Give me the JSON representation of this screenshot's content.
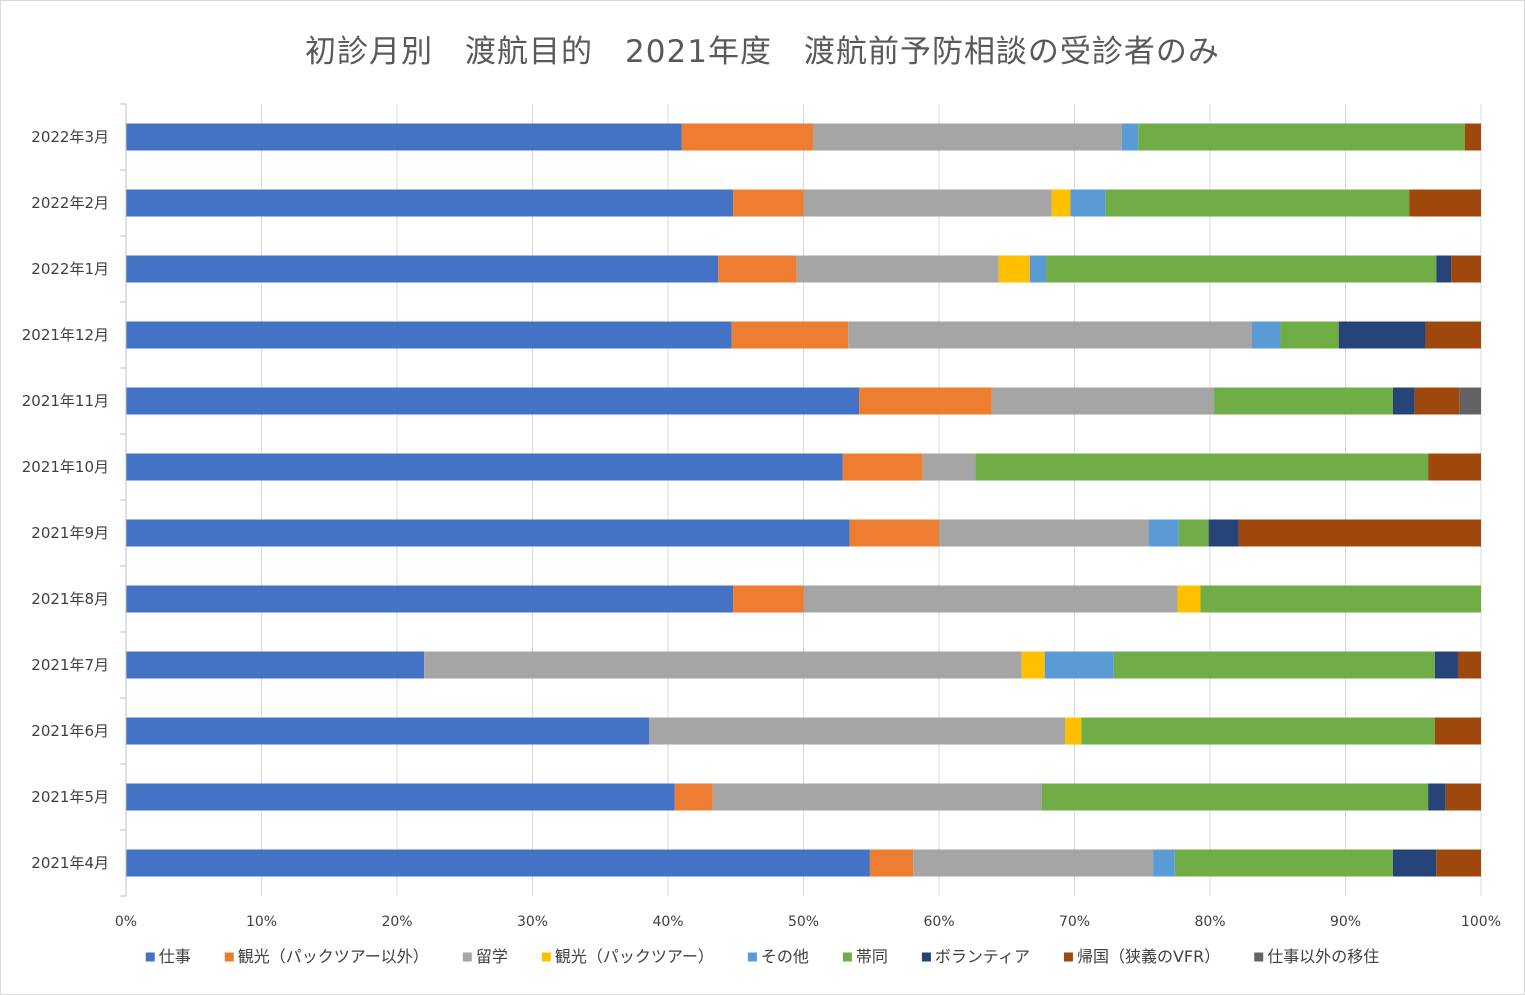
{
  "chart_data": {
    "type": "bar",
    "orientation": "horizontal",
    "stacked": "percent",
    "title": "初診月別　渡航目的　2021年度　渡航前予防相談の受診者のみ",
    "categories": [
      "2022年3月",
      "2022年2月",
      "2022年1月",
      "2021年12月",
      "2021年11月",
      "2021年10月",
      "2021年9月",
      "2021年8月",
      "2021年7月",
      "2021年6月",
      "2021年5月",
      "2021年4月"
    ],
    "x_ticks": [
      "0%",
      "10%",
      "20%",
      "30%",
      "40%",
      "50%",
      "60%",
      "70%",
      "80%",
      "90%",
      "100%"
    ],
    "xlim": [
      0,
      100
    ],
    "legend_position": "bottom",
    "series": [
      {
        "name": "仕事",
        "color": "#4472C4",
        "values": [
          41.0,
          44.8,
          43.7,
          44.7,
          54.1,
          52.9,
          53.4,
          44.8,
          22.0,
          38.6,
          40.5,
          54.9
        ]
      },
      {
        "name": "観光（パックツアー以外）",
        "color": "#ED7D31",
        "values": [
          9.7,
          5.2,
          5.8,
          8.6,
          9.8,
          5.9,
          6.6,
          5.2,
          0,
          0,
          2.8,
          3.2
        ]
      },
      {
        "name": "留学",
        "color": "#A5A5A5",
        "values": [
          22.8,
          18.3,
          14.9,
          29.8,
          16.4,
          3.9,
          15.5,
          27.6,
          44.1,
          30.7,
          24.3,
          17.7
        ]
      },
      {
        "name": "観光（パックツアー）",
        "color": "#FFC000",
        "values": [
          0,
          1.4,
          2.3,
          0,
          0,
          0,
          0,
          1.7,
          1.7,
          1.2,
          0,
          0
        ]
      },
      {
        "name": "その他",
        "color": "#5B9BD5",
        "values": [
          1.2,
          2.6,
          1.2,
          2.1,
          0,
          0,
          2.2,
          0,
          5.1,
          0,
          0,
          1.6
        ]
      },
      {
        "name": "帯同",
        "color": "#70AD47",
        "values": [
          24.1,
          22.4,
          28.8,
          4.3,
          13.2,
          33.4,
          2.2,
          20.7,
          23.7,
          26.1,
          28.5,
          16.1
        ]
      },
      {
        "name": "ボランティア",
        "color": "#264478",
        "values": [
          0,
          0,
          1.1,
          6.4,
          1.6,
          0,
          2.2,
          0,
          1.7,
          0,
          1.3,
          3.2
        ]
      },
      {
        "name": "帰国（狭義のVFR）",
        "color": "#9E480E",
        "values": [
          1.2,
          5.3,
          2.2,
          4.1,
          3.3,
          3.9,
          17.9,
          0,
          1.7,
          3.4,
          2.6,
          3.3
        ]
      },
      {
        "name": "仕事以外の移住",
        "color": "#636363",
        "values": [
          0,
          0,
          0,
          0,
          1.6,
          0,
          0,
          0,
          0,
          0,
          0,
          0
        ]
      }
    ]
  }
}
